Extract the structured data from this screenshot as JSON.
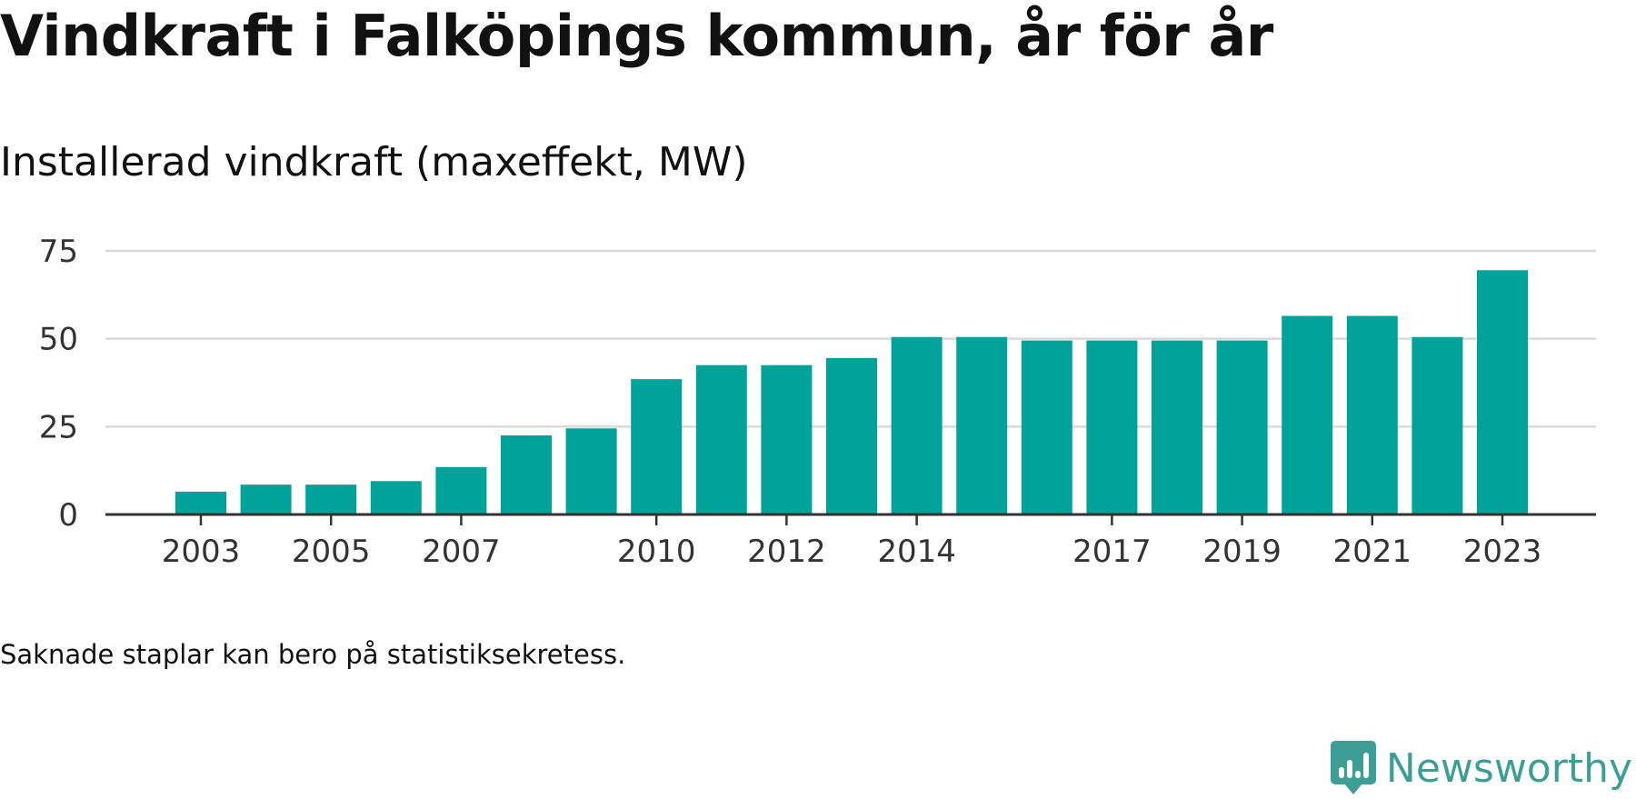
{
  "header": {
    "title": "Vindkraft i Falköpings kommun, år för år",
    "subtitle": "Installerad vindkraft (maxeffekt, MW)"
  },
  "footer": {
    "note": "Saknade staplar kan bero på statistiksekretess.",
    "brand": "Newsworthy",
    "brand_icon": "newsworthy-logo-icon"
  },
  "colors": {
    "bar": "#00a39a",
    "grid": "#d9d9d9",
    "axis": "#333333",
    "brand": "#3d9e96"
  },
  "chart_data": {
    "type": "bar",
    "categories": [
      "2003",
      "2004",
      "2005",
      "2006",
      "2007",
      "2008",
      "2009",
      "2010",
      "2011",
      "2012",
      "2013",
      "2014",
      "2015",
      "2016",
      "2017",
      "2018",
      "2019",
      "2020",
      "2021",
      "2022",
      "2023"
    ],
    "values": [
      6.5,
      8.5,
      8.5,
      9.5,
      13.5,
      22.5,
      24.5,
      38.5,
      42.5,
      42.5,
      44.5,
      50.5,
      50.5,
      49.5,
      49.5,
      49.5,
      49.5,
      56.5,
      56.5,
      50.5,
      69.5
    ],
    "x_tick_labels": [
      "2003",
      "2005",
      "2007",
      "2010",
      "2012",
      "2014",
      "2017",
      "2019",
      "2021",
      "2023"
    ],
    "y_ticks": [
      0,
      25,
      50,
      75
    ],
    "ylim": [
      0,
      75
    ],
    "xlabel": "",
    "ylabel": "",
    "grid": true,
    "legend": "none"
  }
}
